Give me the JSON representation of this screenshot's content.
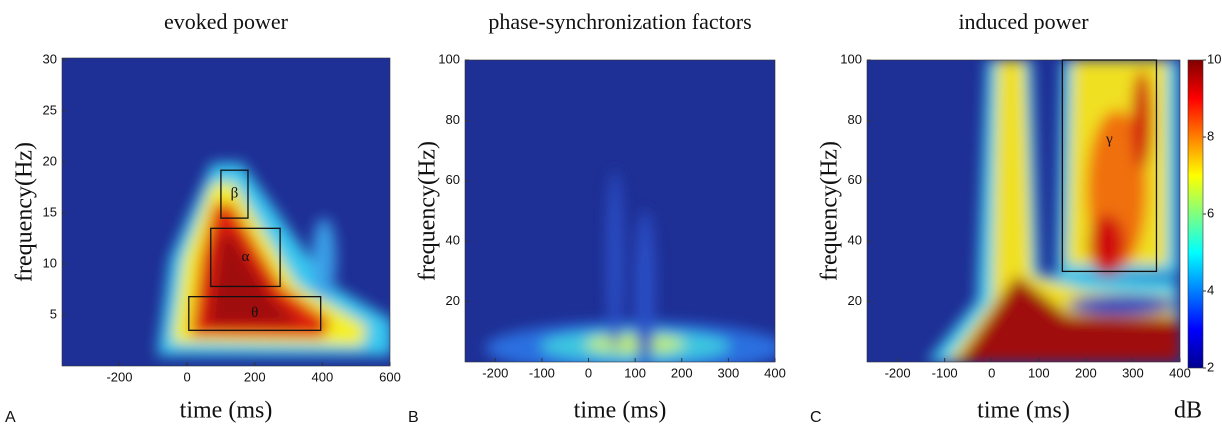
{
  "chart_data": [
    {
      "type": "heatmap",
      "panel": "A",
      "title": "evoked power",
      "x_label": "time (ms)",
      "y_label": "frequency(Hz)",
      "xlim": [
        -370,
        600
      ],
      "xticks": [
        -200,
        0,
        200,
        400,
        600
      ],
      "ylim": [
        0,
        30.2
      ],
      "yticks": [
        5,
        10,
        15,
        20,
        25,
        30
      ],
      "regions": [
        {
          "label": "β",
          "x": [
            100,
            180
          ],
          "y": [
            14.5,
            19.2
          ]
        },
        {
          "label": "α",
          "x": [
            70,
            275
          ],
          "y": [
            7.8,
            13.5
          ]
        },
        {
          "label": "θ",
          "x": [
            5,
            395
          ],
          "y": [
            3.5,
            6.8
          ]
        }
      ]
    },
    {
      "type": "heatmap",
      "panel": "B",
      "title": "phase-synchronization factors",
      "x_label": "time (ms)",
      "y_label": "frequency(Hz)",
      "xlim": [
        -265,
        400
      ],
      "xticks": [
        -200,
        -100,
        0,
        100,
        200,
        300,
        400
      ],
      "ylim": [
        0,
        100
      ],
      "yticks": [
        20,
        40,
        60,
        80,
        100
      ]
    },
    {
      "type": "heatmap",
      "panel": "C",
      "title": "induced power",
      "x_label": "time (ms)",
      "y_label": "frequency(Hz)",
      "xlim": [
        -265,
        400
      ],
      "xticks": [
        -200,
        -100,
        0,
        100,
        200,
        300,
        400
      ],
      "ylim": [
        0,
        100
      ],
      "yticks": [
        20,
        40,
        60,
        80,
        100
      ],
      "regions": [
        {
          "label": "γ",
          "x": [
            150,
            350
          ],
          "y": [
            30,
            100
          ]
        }
      ],
      "colorbar": {
        "lim": [
          2,
          10
        ],
        "ticks": [
          2,
          4,
          6,
          8,
          10
        ],
        "label": "dB"
      }
    }
  ]
}
